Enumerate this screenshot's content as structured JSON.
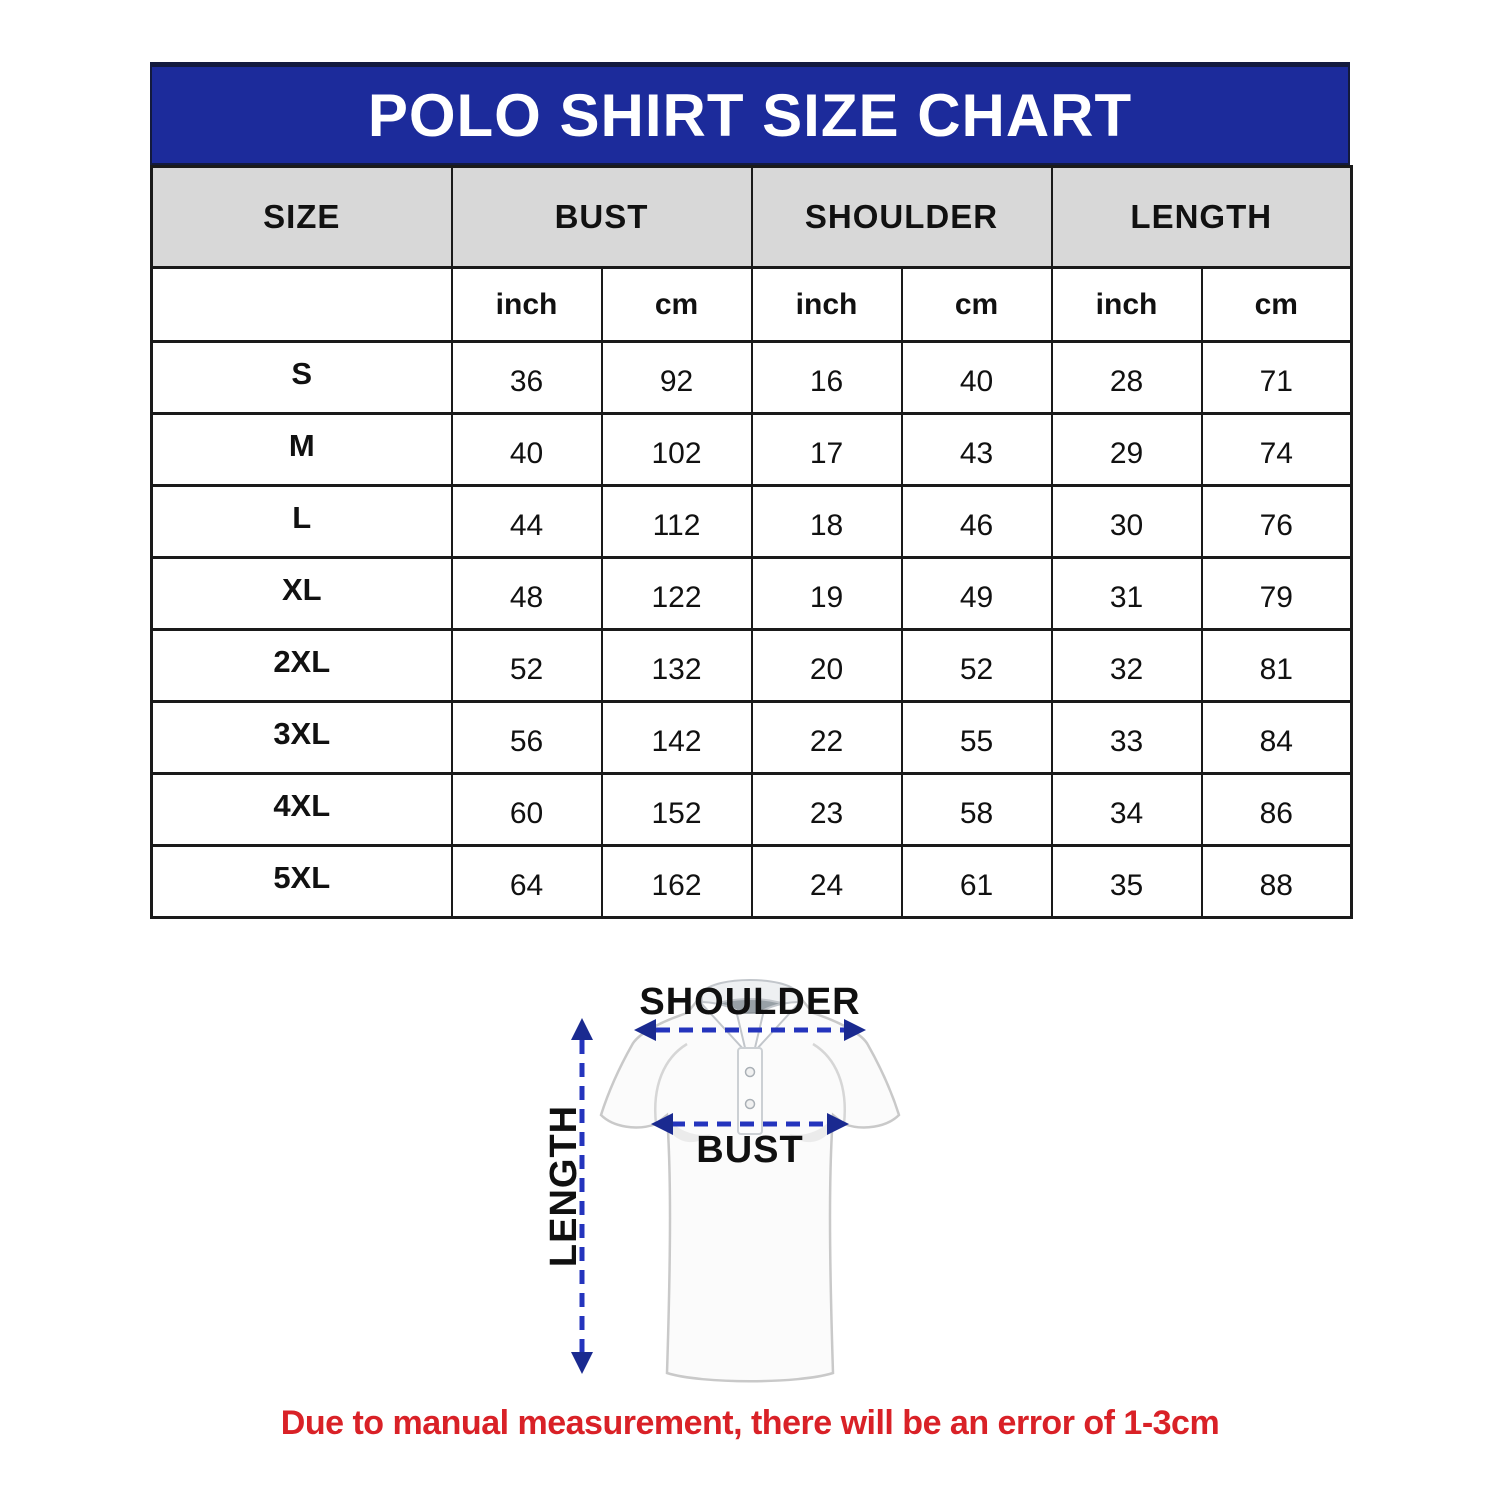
{
  "header": {
    "title": "POLO SHIRT SIZE CHART"
  },
  "table": {
    "group_headers": [
      "SIZE",
      "BUST",
      "SHOULDER",
      "LENGTH"
    ],
    "unit_row": [
      "inch",
      "cm",
      "inch",
      "cm",
      "inch",
      "cm"
    ],
    "rows": [
      {
        "size": "S",
        "values": [
          "36",
          "92",
          "16",
          "40",
          "28",
          "71"
        ]
      },
      {
        "size": "M",
        "values": [
          "40",
          "102",
          "17",
          "43",
          "29",
          "74"
        ]
      },
      {
        "size": "L",
        "values": [
          "44",
          "112",
          "18",
          "46",
          "30",
          "76"
        ]
      },
      {
        "size": "XL",
        "values": [
          "48",
          "122",
          "19",
          "49",
          "31",
          "79"
        ]
      },
      {
        "size": "2XL",
        "values": [
          "52",
          "132",
          "20",
          "52",
          "32",
          "81"
        ]
      },
      {
        "size": "3XL",
        "values": [
          "56",
          "142",
          "22",
          "55",
          "33",
          "84"
        ]
      },
      {
        "size": "4XL",
        "values": [
          "60",
          "152",
          "23",
          "58",
          "34",
          "86"
        ]
      },
      {
        "size": "5XL",
        "values": [
          "64",
          "162",
          "24",
          "61",
          "35",
          "88"
        ]
      }
    ]
  },
  "diagram": {
    "shoulder_label": "SHOULDER",
    "bust_label": "BUST",
    "length_label": "LENGTH"
  },
  "footer": {
    "note": "Due to manual measurement, there will be an error of 1-3cm"
  },
  "colors": {
    "banner_blue": "#1c2b9b",
    "banner_dark": "#131a3e",
    "header_gray": "#d8d8d8",
    "line": "#1a1a1a",
    "arrow_blue": "#2434bd",
    "arrowhead_navy": "#1a2a90",
    "note_red": "#d92127"
  },
  "chart_data": {
    "type": "table",
    "title": "POLO SHIRT SIZE CHART",
    "columns": [
      "SIZE",
      "BUST (inch)",
      "BUST (cm)",
      "SHOULDER (inch)",
      "SHOULDER (cm)",
      "LENGTH (inch)",
      "LENGTH (cm)"
    ],
    "rows": [
      [
        "S",
        36,
        92,
        16,
        40,
        28,
        71
      ],
      [
        "M",
        40,
        102,
        17,
        43,
        29,
        74
      ],
      [
        "L",
        44,
        112,
        18,
        46,
        30,
        76
      ],
      [
        "XL",
        48,
        122,
        19,
        49,
        31,
        79
      ],
      [
        "2XL",
        52,
        132,
        20,
        52,
        32,
        81
      ],
      [
        "3XL",
        56,
        142,
        22,
        55,
        33,
        84
      ],
      [
        "4XL",
        60,
        152,
        23,
        58,
        34,
        86
      ],
      [
        "5XL",
        64,
        162,
        24,
        61,
        35,
        88
      ]
    ],
    "note": "Due to manual measurement, there will be an error of 1-3cm"
  }
}
